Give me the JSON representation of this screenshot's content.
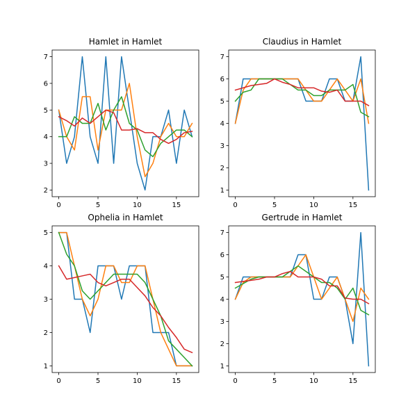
{
  "chart_data": [
    {
      "type": "line",
      "title": "Hamlet in Hamlet",
      "xlabel": "",
      "ylabel": "",
      "xlim": [
        -0.85,
        17.85
      ],
      "ylim": [
        1.75,
        7.25
      ],
      "xticks": [
        0,
        5,
        10,
        15
      ],
      "yticks": [
        2,
        3,
        4,
        5,
        6,
        7
      ],
      "x": [
        0,
        1,
        2,
        3,
        4,
        5,
        6,
        7,
        8,
        9,
        10,
        11,
        12,
        13,
        14,
        15,
        16,
        17
      ],
      "series": [
        {
          "color": "#1f77b4",
          "values": [
            5,
            3,
            4,
            7,
            4,
            3,
            7,
            3,
            7,
            5,
            3,
            2,
            4,
            4,
            5,
            3,
            5,
            4
          ]
        },
        {
          "color": "#ff7f0e",
          "values": [
            5,
            4,
            3.5,
            5.5,
            5.5,
            3.5,
            5,
            5,
            5,
            6,
            4,
            2.5,
            3,
            4,
            4.5,
            4,
            4,
            4.5
          ]
        },
        {
          "color": "#2ca02c",
          "values": [
            4,
            4,
            4.75,
            4.5,
            4.5,
            5.25,
            4.25,
            5,
            5.5,
            4.5,
            4.25,
            3.5,
            3.25,
            3.75,
            4,
            4.25,
            4.25,
            4
          ]
        },
        {
          "color": "#d62728",
          "values": [
            4.75,
            4.6,
            4.4,
            4.7,
            4.5,
            4.75,
            5,
            4.9,
            4.25,
            4.25,
            4.3,
            4.15,
            4.15,
            3.9,
            3.75,
            3.9,
            4.15,
            4.2
          ]
        }
      ]
    },
    {
      "type": "line",
      "title": "Claudius in Hamlet",
      "xlabel": "",
      "ylabel": "",
      "xlim": [
        -0.85,
        17.85
      ],
      "ylim": [
        0.7,
        7.3
      ],
      "xticks": [
        0,
        5,
        10,
        15
      ],
      "yticks": [
        1,
        2,
        3,
        4,
        5,
        6,
        7
      ],
      "x": [
        0,
        1,
        2,
        3,
        4,
        5,
        6,
        7,
        8,
        9,
        10,
        11,
        12,
        13,
        14,
        15,
        16,
        17
      ],
      "series": [
        {
          "color": "#1f77b4",
          "values": [
            4,
            6,
            6,
            6,
            6,
            6,
            6,
            6,
            6,
            5,
            5,
            5,
            6,
            6,
            5,
            5,
            7,
            1
          ]
        },
        {
          "color": "#ff7f0e",
          "values": [
            4,
            5.5,
            6,
            6,
            6,
            6,
            6,
            6,
            6,
            5.5,
            5,
            5,
            5.5,
            6,
            5.5,
            5,
            6,
            4
          ]
        },
        {
          "color": "#2ca02c",
          "values": [
            5,
            5.4,
            5.5,
            6,
            6,
            6,
            6,
            5.75,
            5.5,
            5.5,
            5.25,
            5.25,
            5.5,
            5.5,
            5.5,
            5.75,
            4.5,
            4.3
          ]
        },
        {
          "color": "#d62728",
          "values": [
            5.5,
            5.6,
            5.7,
            5.75,
            5.8,
            6,
            5.85,
            5.75,
            5.6,
            5.6,
            5.6,
            5.45,
            5.4,
            5.5,
            5,
            5,
            5,
            4.8
          ]
        }
      ]
    },
    {
      "type": "line",
      "title": "Ophelia in Hamlet",
      "xlabel": "",
      "ylabel": "",
      "xlim": [
        -0.85,
        17.85
      ],
      "ylim": [
        0.8,
        5.2
      ],
      "xticks": [
        0,
        5,
        10,
        15
      ],
      "yticks": [
        1,
        2,
        3,
        4,
        5
      ],
      "x": [
        0,
        1,
        2,
        3,
        4,
        5,
        6,
        7,
        8,
        9,
        10,
        11,
        12,
        13,
        14,
        15,
        16,
        17
      ],
      "series": [
        {
          "color": "#1f77b4",
          "values": [
            5,
            5,
            3,
            3,
            2,
            4,
            4,
            4,
            3,
            4,
            4,
            4,
            2,
            2,
            2,
            1,
            1,
            1
          ]
        },
        {
          "color": "#ff7f0e",
          "values": [
            5,
            5,
            4,
            3,
            2.5,
            3,
            4,
            4,
            3.5,
            3.5,
            4,
            4,
            3,
            2,
            1.5,
            1,
            1,
            1
          ]
        },
        {
          "color": "#2ca02c",
          "values": [
            5,
            4.35,
            4,
            3.25,
            3,
            3.25,
            3.5,
            3.75,
            3.75,
            3.75,
            3.75,
            3.5,
            3,
            2.5,
            1.75,
            1.5,
            1.25,
            1
          ]
        },
        {
          "color": "#d62728",
          "values": [
            4,
            3.6,
            3.65,
            3.7,
            3.75,
            3.5,
            3.4,
            3.5,
            3.6,
            3.6,
            3.35,
            3.1,
            2.75,
            2.5,
            2.15,
            1.85,
            1.5,
            1.4
          ]
        }
      ]
    },
    {
      "type": "line",
      "title": "Gertrude in Hamlet",
      "xlabel": "",
      "ylabel": "",
      "xlim": [
        -0.85,
        17.85
      ],
      "ylim": [
        0.7,
        7.3
      ],
      "xticks": [
        0,
        5,
        10,
        15
      ],
      "yticks": [
        1,
        2,
        3,
        4,
        5,
        6,
        7
      ],
      "x": [
        0,
        1,
        2,
        3,
        4,
        5,
        6,
        7,
        8,
        9,
        10,
        11,
        12,
        13,
        14,
        15,
        16,
        17
      ],
      "series": [
        {
          "color": "#1f77b4",
          "values": [
            4,
            5,
            5,
            5,
            5,
            5,
            5,
            5,
            6,
            6,
            4,
            4,
            5,
            5,
            4,
            2,
            7,
            1
          ]
        },
        {
          "color": "#ff7f0e",
          "values": [
            4,
            4.75,
            5,
            5,
            5,
            5,
            5,
            5,
            5.5,
            6,
            5,
            4,
            4.5,
            5,
            4,
            3,
            4.5,
            4
          ]
        },
        {
          "color": "#2ca02c",
          "values": [
            4.5,
            4.7,
            4.9,
            5,
            5,
            5,
            5,
            5.25,
            5.5,
            5.25,
            5,
            4.75,
            4.75,
            4.5,
            4,
            4.5,
            3.5,
            3.3
          ]
        },
        {
          "color": "#d62728",
          "values": [
            4.75,
            4.8,
            4.85,
            4.9,
            5,
            5,
            5.15,
            5.25,
            5,
            5,
            5,
            4.9,
            4.6,
            4.6,
            4.05,
            4,
            4,
            3.8
          ]
        }
      ]
    }
  ]
}
